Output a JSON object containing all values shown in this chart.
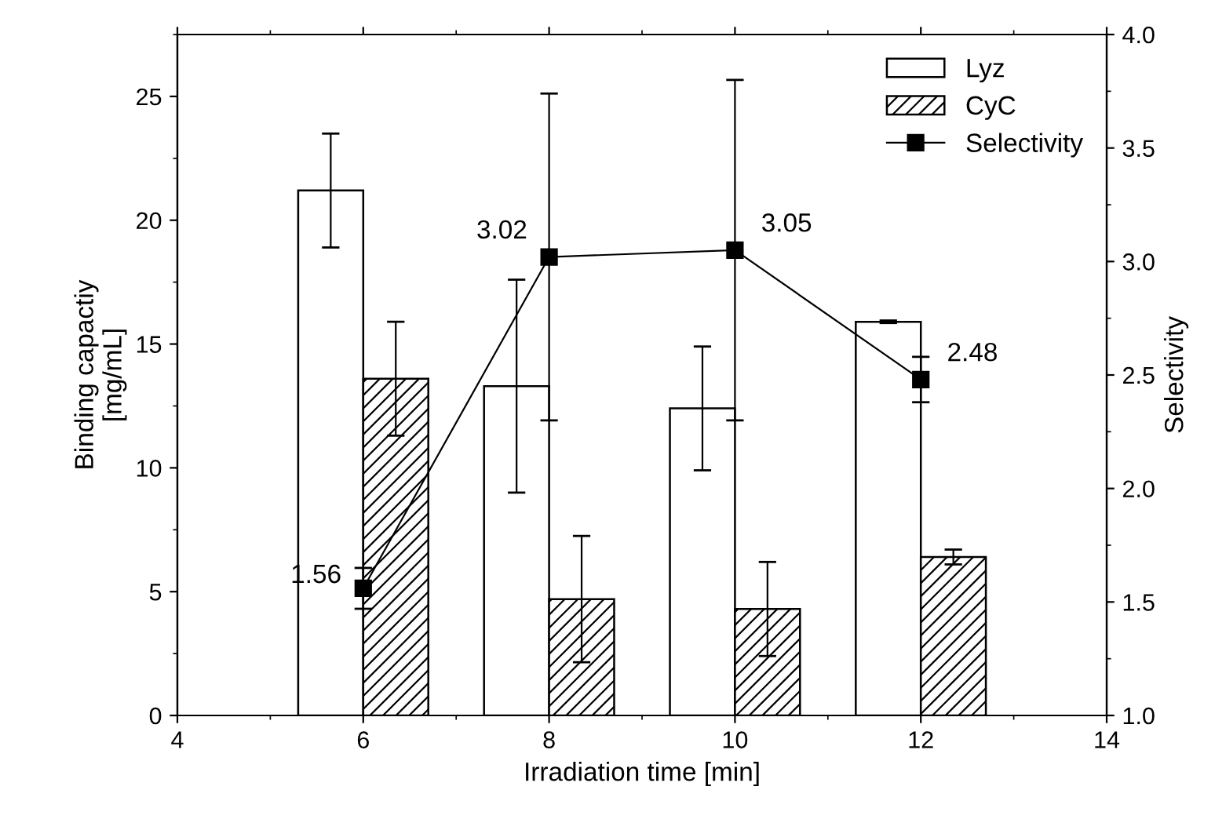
{
  "chart_data": {
    "type": "bar",
    "xlabel": "Irradiation time [min]",
    "ylabel": "Binding capactiy\n[mg/mL]",
    "y2label": "Selectivity",
    "x": [
      6,
      8,
      10,
      12
    ],
    "series": [
      {
        "name": "Lyz",
        "color": "#ffffff",
        "values": [
          21.2,
          13.3,
          12.4,
          15.9
        ],
        "errors": [
          2.3,
          4.3,
          2.5,
          0.05
        ]
      },
      {
        "name": "CyC",
        "color": "#000000",
        "values": [
          13.6,
          4.7,
          4.3,
          6.4
        ],
        "errors": [
          2.3,
          2.55,
          1.9,
          0.3
        ]
      },
      {
        "name": "Selectivity",
        "type": "line",
        "axis": "y2",
        "color": "#000000",
        "marker": "square",
        "line_style": "solid",
        "values": [
          1.56,
          3.02,
          3.05,
          2.48
        ],
        "errors": [
          0.09,
          0.72,
          0.75,
          0.1
        ],
        "data_labels": true
      }
    ],
    "xlim": [
      4,
      14
    ],
    "xticks": [
      4,
      6,
      8,
      10,
      12,
      14
    ],
    "ylim": [
      0,
      27.5
    ],
    "yticks": [
      0,
      5,
      10,
      15,
      20,
      25
    ],
    "y2lim": [
      1.0,
      4.0
    ],
    "y2ticks": [
      {
        "value": 1.0,
        "label": "1.0"
      },
      {
        "value": 1.5,
        "label": "1.5"
      },
      {
        "value": 2.0,
        "label": "2.0"
      },
      {
        "value": 2.5,
        "label": "2.5"
      },
      {
        "value": 3.0,
        "label": "3.0"
      },
      {
        "value": 3.5,
        "label": "3.5"
      },
      {
        "value": 4.0,
        "label": "4.0"
      }
    ],
    "grid": false,
    "legend": "top right"
  }
}
